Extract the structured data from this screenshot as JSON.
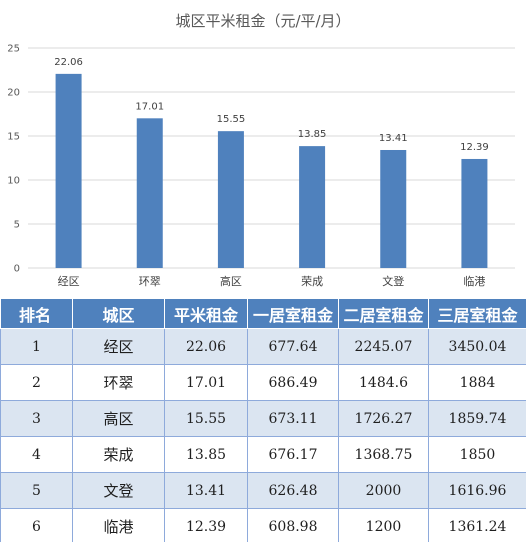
{
  "chart_data": {
    "type": "bar",
    "title": "城区平米租金（元/平/月）",
    "categories": [
      "经区",
      "环翠",
      "高区",
      "荣成",
      "文登",
      "临港"
    ],
    "values": [
      22.06,
      17.01,
      15.55,
      13.85,
      13.41,
      12.39
    ],
    "data_labels": [
      "22.06",
      "17.01",
      "15.55",
      "13.85",
      "13.41",
      "12.39"
    ],
    "yticks": [
      "0",
      "5",
      "10",
      "15",
      "20",
      "25"
    ],
    "ylim": [
      0,
      25
    ],
    "grid": true,
    "bar_color": "#4f81bd",
    "grid_color": "#d9d9d9"
  },
  "table": {
    "headers": [
      "排名",
      "城区",
      "平米租金",
      "一居室租金",
      "二居室租金",
      "三居室租金"
    ],
    "rows": [
      [
        "1",
        "经区",
        "22.06",
        "677.64",
        "2245.07",
        "3450.04"
      ],
      [
        "2",
        "环翠",
        "17.01",
        "686.49",
        "1484.6",
        "1884"
      ],
      [
        "3",
        "高区",
        "15.55",
        "673.11",
        "1726.27",
        "1859.74"
      ],
      [
        "4",
        "荣成",
        "13.85",
        "676.17",
        "1368.75",
        "1850"
      ],
      [
        "5",
        "文登",
        "13.41",
        "626.48",
        "2000",
        "1616.96"
      ],
      [
        "6",
        "临港",
        "12.39",
        "608.98",
        "1200",
        "1361.24"
      ]
    ],
    "header_color": "#4f81bd",
    "band_color": "#dbe5f1"
  }
}
